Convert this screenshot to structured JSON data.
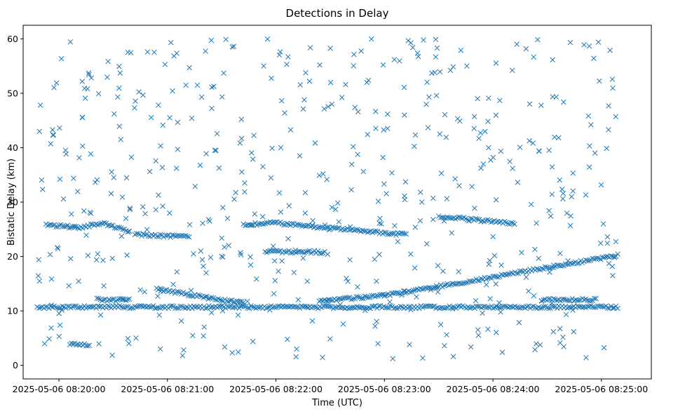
{
  "chart_data": {
    "type": "scatter",
    "title": "Detections in Delay",
    "xlabel": "Time (UTC)",
    "ylabel": "Bistatic Delay (km)",
    "marker": "x",
    "color": "#1f77b4",
    "grid": false,
    "legend": "none",
    "x_unit": "minutes after 2025-05-06 08:20:00",
    "xlim": [
      -0.33,
      5.46
    ],
    "ylim": [
      -2.5,
      62.5
    ],
    "x_ticks": [
      0,
      1,
      2,
      3,
      4,
      5
    ],
    "x_tick_labels": [
      "2025-05-06 08:20:00",
      "2025-05-06 08:21:00",
      "2025-05-06 08:22:00",
      "2025-05-06 08:23:00",
      "2025-05-06 08:24:00",
      "2025-05-06 08:25:00"
    ],
    "y_ticks": [
      0,
      10,
      20,
      30,
      40,
      50,
      60
    ],
    "y_tick_labels": [
      "0",
      "10",
      "20",
      "30",
      "40",
      "50",
      "60"
    ],
    "tracks": [
      {
        "description": "constant clutter near 10.7 km",
        "x_start": -0.2,
        "x_end": 5.15,
        "points": [
          [
            -0.2,
            10.7
          ],
          [
            5.15,
            10.7
          ]
        ]
      },
      {
        "description": "track near 25.5 km (early)",
        "x_start": -0.12,
        "x_end": 0.65,
        "points": [
          [
            -0.12,
            25.8
          ],
          [
            0.2,
            25.3
          ],
          [
            0.4,
            26.2
          ],
          [
            0.65,
            24.5
          ]
        ]
      },
      {
        "description": "track near 23.8 km",
        "x_start": 0.7,
        "x_end": 1.2,
        "points": [
          [
            0.7,
            24.0
          ],
          [
            1.2,
            23.6
          ]
        ]
      },
      {
        "description": "track near 26 km (middle)",
        "x_start": 1.7,
        "x_end": 3.2,
        "points": [
          [
            1.7,
            25.8
          ],
          [
            2.0,
            26.2
          ],
          [
            2.5,
            25.2
          ],
          [
            3.2,
            24.0
          ]
        ]
      },
      {
        "description": "track near 20.8 km",
        "x_start": 1.9,
        "x_end": 2.45,
        "points": [
          [
            1.9,
            20.9
          ],
          [
            2.45,
            20.8
          ]
        ]
      },
      {
        "description": "track near 27 km (late)",
        "x_start": 3.5,
        "x_end": 4.2,
        "points": [
          [
            3.5,
            27.4
          ],
          [
            3.8,
            26.8
          ],
          [
            4.2,
            26.0
          ]
        ]
      },
      {
        "description": "descending track",
        "x_start": 0.9,
        "x_end": 1.7,
        "points": [
          [
            0.9,
            14.0
          ],
          [
            1.2,
            13.0
          ],
          [
            1.5,
            12.0
          ],
          [
            1.7,
            11.5
          ]
        ]
      },
      {
        "description": "ascending track",
        "x_start": 2.4,
        "x_end": 5.15,
        "points": [
          [
            2.4,
            11.8
          ],
          [
            3.0,
            12.8
          ],
          [
            3.5,
            14.5
          ],
          [
            4.0,
            16.2
          ],
          [
            4.5,
            18.0
          ],
          [
            5.15,
            20.2
          ]
        ]
      },
      {
        "description": "short track near 3.8 km",
        "x_start": 0.1,
        "x_end": 0.28,
        "points": [
          [
            0.1,
            3.8
          ],
          [
            0.28,
            3.7
          ]
        ]
      },
      {
        "description": "short track near 12 km",
        "x_start": 0.35,
        "x_end": 0.65,
        "points": [
          [
            0.35,
            12.1
          ],
          [
            0.65,
            12.0
          ]
        ]
      },
      {
        "description": "short track near 12 km (late)",
        "x_start": 4.45,
        "x_end": 4.95,
        "points": [
          [
            4.45,
            12.0
          ],
          [
            4.95,
            12.1
          ]
        ]
      }
    ],
    "scattered_noise": {
      "x_range": [
        -0.2,
        5.15
      ],
      "y_range": [
        1,
        60
      ],
      "approx_count": 520
    }
  }
}
